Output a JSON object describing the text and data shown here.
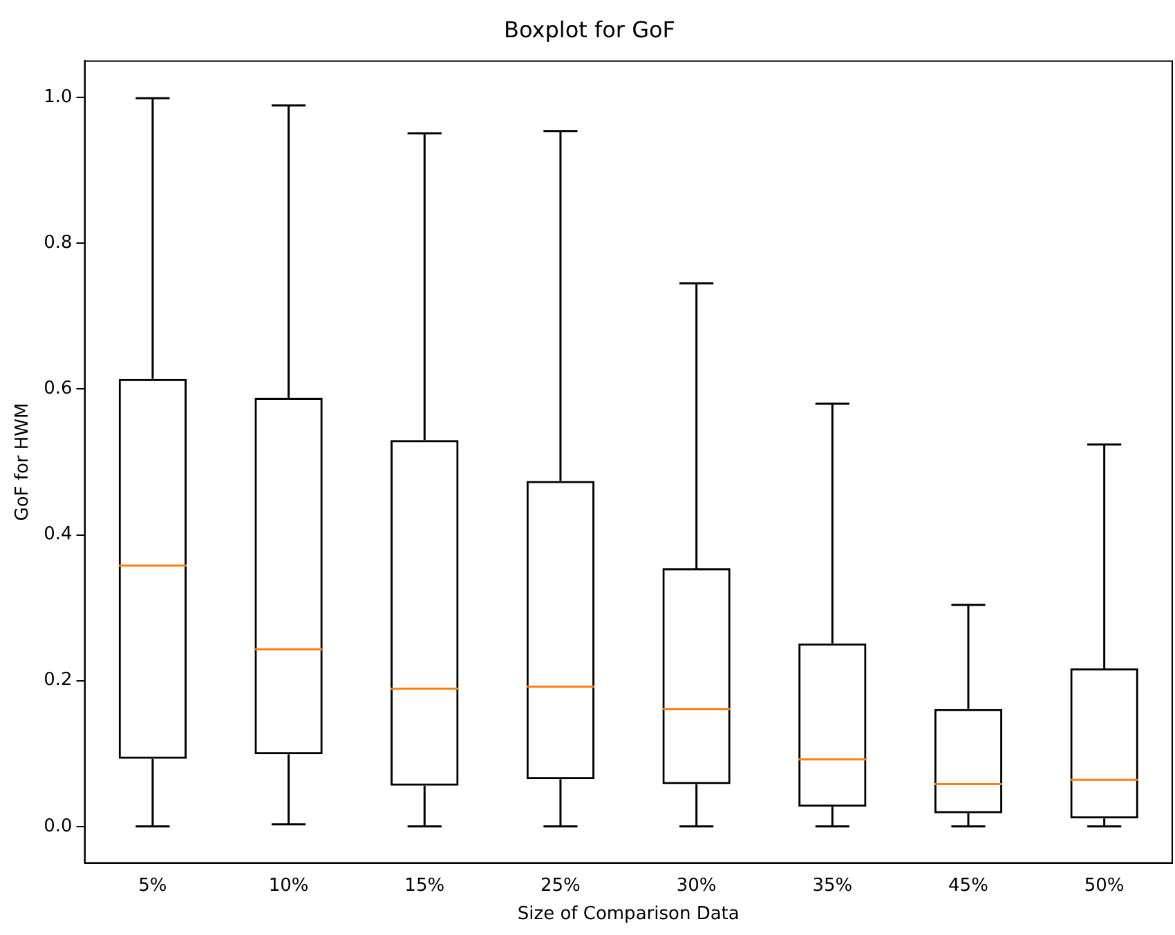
{
  "chart_data": {
    "type": "box",
    "title": "Boxplot for GoF",
    "xlabel": "Size of Comparison Data",
    "ylabel": "GoF for HWM",
    "categories": [
      "5%",
      "10%",
      "15%",
      "25%",
      "30%",
      "35%",
      "45%",
      "50%"
    ],
    "boxes": [
      {
        "low": 0,
        "q1": 0.093,
        "median": 0.358,
        "q3": 0.614,
        "high": 0.999
      },
      {
        "low": 0.003,
        "q1": 0.099,
        "median": 0.243,
        "q3": 0.588,
        "high": 0.989
      },
      {
        "low": 0,
        "q1": 0.056,
        "median": 0.189,
        "q3": 0.53,
        "high": 0.951
      },
      {
        "low": 0,
        "q1": 0.065,
        "median": 0.192,
        "q3": 0.474,
        "high": 0.954
      },
      {
        "low": 0,
        "q1": 0.058,
        "median": 0.161,
        "q3": 0.354,
        "high": 0.745
      },
      {
        "low": 0,
        "q1": 0.027,
        "median": 0.092,
        "q3": 0.251,
        "high": 0.58
      },
      {
        "low": 0,
        "q1": 0.018,
        "median": 0.058,
        "q3": 0.161,
        "high": 0.304
      },
      {
        "low": 0,
        "q1": 0.011,
        "median": 0.064,
        "q3": 0.217,
        "high": 0.524
      }
    ],
    "ylim": [
      -0.05,
      1.05
    ],
    "yticks": [
      {
        "value": 0,
        "label": "0.0"
      },
      {
        "value": 0.2,
        "label": "0.2"
      },
      {
        "value": 0.4,
        "label": "0.4"
      },
      {
        "value": 0.6,
        "label": "0.6"
      },
      {
        "value": 0.8,
        "label": "0.8"
      },
      {
        "value": 1,
        "label": "1.0"
      }
    ],
    "grid": false
  }
}
